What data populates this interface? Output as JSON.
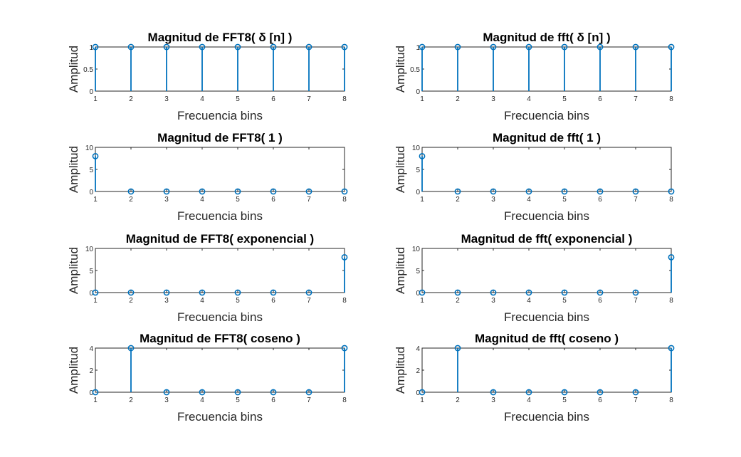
{
  "figure": {
    "background": "#ffffff",
    "series_color": "#0072BD"
  },
  "chart_data": [
    {
      "type": "stem",
      "title": "Magnitud de FFT8( δ [n] )",
      "xlabel": "Frecuencia bins",
      "ylabel": "Amplitud",
      "xlim": [
        1,
        8
      ],
      "ylim": [
        0,
        1
      ],
      "xticks": [
        1,
        2,
        3,
        4,
        5,
        6,
        7,
        8
      ],
      "yticks": [
        0,
        0.5,
        1
      ],
      "ytick_labels": [
        "0",
        "0.5",
        "1"
      ],
      "x": [
        1,
        2,
        3,
        4,
        5,
        6,
        7,
        8
      ],
      "values": [
        1,
        1,
        1,
        1,
        1,
        1,
        1,
        1
      ]
    },
    {
      "type": "stem",
      "title": "Magnitud de fft( δ [n] )",
      "xlabel": "Frecuencia bins",
      "ylabel": "Amplitud",
      "xlim": [
        1,
        8
      ],
      "ylim": [
        0,
        1
      ],
      "xticks": [
        1,
        2,
        3,
        4,
        5,
        6,
        7,
        8
      ],
      "yticks": [
        0,
        0.5,
        1
      ],
      "ytick_labels": [
        "0",
        "0.5",
        "1"
      ],
      "x": [
        1,
        2,
        3,
        4,
        5,
        6,
        7,
        8
      ],
      "values": [
        1,
        1,
        1,
        1,
        1,
        1,
        1,
        1
      ]
    },
    {
      "type": "stem",
      "title": "Magnitud de FFT8( 1 )",
      "xlabel": "Frecuencia bins",
      "ylabel": "Amplitud",
      "xlim": [
        1,
        8
      ],
      "ylim": [
        0,
        10
      ],
      "xticks": [
        1,
        2,
        3,
        4,
        5,
        6,
        7,
        8
      ],
      "yticks": [
        0,
        5,
        10
      ],
      "ytick_labels": [
        "0",
        "5",
        "10"
      ],
      "x": [
        1,
        2,
        3,
        4,
        5,
        6,
        7,
        8
      ],
      "values": [
        8,
        0,
        0,
        0,
        0,
        0,
        0,
        0
      ]
    },
    {
      "type": "stem",
      "title": "Magnitud de fft( 1 )",
      "xlabel": "Frecuencia bins",
      "ylabel": "Amplitud",
      "xlim": [
        1,
        8
      ],
      "ylim": [
        0,
        10
      ],
      "xticks": [
        1,
        2,
        3,
        4,
        5,
        6,
        7,
        8
      ],
      "yticks": [
        0,
        5,
        10
      ],
      "ytick_labels": [
        "0",
        "5",
        "10"
      ],
      "x": [
        1,
        2,
        3,
        4,
        5,
        6,
        7,
        8
      ],
      "values": [
        8,
        0,
        0,
        0,
        0,
        0,
        0,
        0
      ]
    },
    {
      "type": "stem",
      "title": "Magnitud de FFT8( exponencial )",
      "xlabel": "Frecuencia bins",
      "ylabel": "Amplitud",
      "xlim": [
        1,
        8
      ],
      "ylim": [
        0,
        10
      ],
      "xticks": [
        1,
        2,
        3,
        4,
        5,
        6,
        7,
        8
      ],
      "yticks": [
        0,
        5,
        10
      ],
      "ytick_labels": [
        "0",
        "5",
        "10"
      ],
      "x": [
        1,
        2,
        3,
        4,
        5,
        6,
        7,
        8
      ],
      "values": [
        0,
        0,
        0,
        0,
        0,
        0,
        0,
        8
      ]
    },
    {
      "type": "stem",
      "title": "Magnitud de fft( exponencial )",
      "xlabel": "Frecuencia bins",
      "ylabel": "Amplitud",
      "xlim": [
        1,
        8
      ],
      "ylim": [
        0,
        10
      ],
      "xticks": [
        1,
        2,
        3,
        4,
        5,
        6,
        7,
        8
      ],
      "yticks": [
        0,
        5,
        10
      ],
      "ytick_labels": [
        "0",
        "5",
        "10"
      ],
      "x": [
        1,
        2,
        3,
        4,
        5,
        6,
        7,
        8
      ],
      "values": [
        0,
        0,
        0,
        0,
        0,
        0,
        0,
        8
      ]
    },
    {
      "type": "stem",
      "title": "Magnitud de FFT8( coseno )",
      "xlabel": "Frecuencia bins",
      "ylabel": "Amplitud",
      "xlim": [
        1,
        8
      ],
      "ylim": [
        0,
        4
      ],
      "xticks": [
        1,
        2,
        3,
        4,
        5,
        6,
        7,
        8
      ],
      "yticks": [
        0,
        2,
        4
      ],
      "ytick_labels": [
        "0",
        "2",
        "4"
      ],
      "x": [
        1,
        2,
        3,
        4,
        5,
        6,
        7,
        8
      ],
      "values": [
        0,
        4,
        0,
        0,
        0,
        0,
        0,
        4
      ]
    },
    {
      "type": "stem",
      "title": "Magnitud de fft( coseno )",
      "xlabel": "Frecuencia bins",
      "ylabel": "Amplitud",
      "xlim": [
        1,
        8
      ],
      "ylim": [
        0,
        4
      ],
      "xticks": [
        1,
        2,
        3,
        4,
        5,
        6,
        7,
        8
      ],
      "yticks": [
        0,
        2,
        4
      ],
      "ytick_labels": [
        "0",
        "2",
        "4"
      ],
      "x": [
        1,
        2,
        3,
        4,
        5,
        6,
        7,
        8
      ],
      "values": [
        0,
        4,
        0,
        0,
        0,
        0,
        0,
        4
      ]
    }
  ]
}
